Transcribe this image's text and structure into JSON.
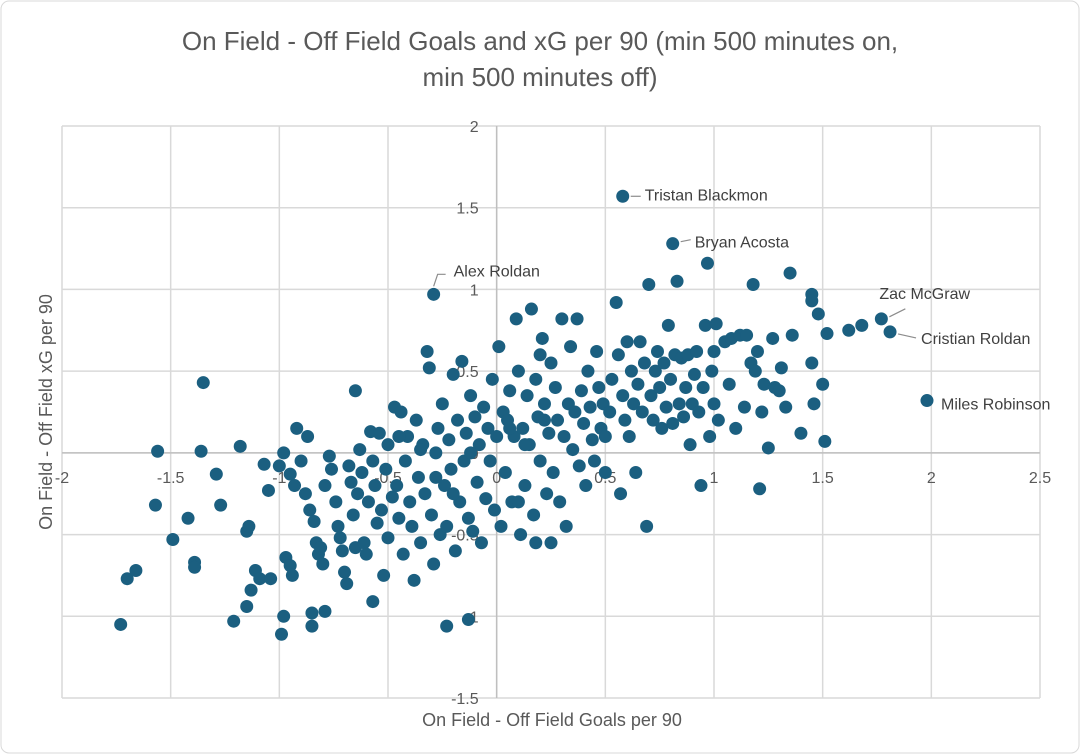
{
  "chart_data": {
    "type": "scatter",
    "title": [
      "On Field - Off Field Goals and xG per 90 (min 500 minutes on,",
      "min 500 minutes off)"
    ],
    "xlabel": "On Field - Off Field Goals per 90",
    "ylabel": "On Field - Off Field xG per 90",
    "xlim": [
      -2,
      2.5
    ],
    "ylim": [
      -1.5,
      2
    ],
    "xticks": [
      -2,
      -1.5,
      -1,
      -0.5,
      0,
      0.5,
      1,
      1.5,
      2,
      2.5
    ],
    "yticks": [
      -1.5,
      -1,
      -0.5,
      0,
      0.5,
      1,
      1.5,
      2
    ],
    "grid": true,
    "marker_color": "#1b5f80",
    "labeled_points": [
      {
        "name": "Tristan Blackmon",
        "x": 0.58,
        "y": 1.57
      },
      {
        "name": "Bryan Acosta",
        "x": 0.81,
        "y": 1.28
      },
      {
        "name": "Alex Roldan",
        "x": -0.29,
        "y": 0.97
      },
      {
        "name": "Zac McGraw",
        "x": 1.77,
        "y": 0.82
      },
      {
        "name": "Cristian Roldan",
        "x": 1.81,
        "y": 0.74
      },
      {
        "name": "Miles Robinson",
        "x": 1.98,
        "y": 0.32
      }
    ],
    "points": [
      [
        -1.73,
        -1.05
      ],
      [
        -1.7,
        -0.77
      ],
      [
        -1.66,
        -0.72
      ],
      [
        -1.57,
        -0.32
      ],
      [
        -1.56,
        0.01
      ],
      [
        -1.49,
        -0.53
      ],
      [
        -1.42,
        -0.4
      ],
      [
        -1.39,
        -0.67
      ],
      [
        -1.39,
        -0.7
      ],
      [
        -1.35,
        0.43
      ],
      [
        -1.36,
        0.01
      ],
      [
        -1.29,
        -0.13
      ],
      [
        -1.27,
        -0.32
      ],
      [
        -1.21,
        -1.03
      ],
      [
        -1.18,
        0.04
      ],
      [
        -1.15,
        -0.48
      ],
      [
        -1.14,
        -0.45
      ],
      [
        -1.15,
        -0.94
      ],
      [
        -1.13,
        -0.84
      ],
      [
        -1.11,
        -0.72
      ],
      [
        -1.09,
        -0.77
      ],
      [
        -1.07,
        -0.07
      ],
      [
        -1.05,
        -0.23
      ],
      [
        -1.04,
        -0.77
      ],
      [
        -0.99,
        -1.11
      ],
      [
        -0.98,
        -1.0
      ],
      [
        -0.97,
        -0.64
      ],
      [
        -0.95,
        -0.69
      ],
      [
        -0.94,
        -0.75
      ],
      [
        -0.92,
        0.15
      ],
      [
        -0.87,
        0.1
      ],
      [
        -0.85,
        -0.98
      ],
      [
        -0.85,
        -1.06
      ],
      [
        -0.79,
        -0.97
      ],
      [
        -0.65,
        0.38
      ],
      [
        -0.57,
        -0.91
      ],
      [
        -0.23,
        -1.06
      ],
      [
        -0.13,
        -1.02
      ],
      [
        -1.0,
        -0.08
      ],
      [
        -0.98,
        0.0
      ],
      [
        -0.95,
        -0.13
      ],
      [
        -0.93,
        -0.2
      ],
      [
        -0.9,
        -0.05
      ],
      [
        -0.88,
        -0.25
      ],
      [
        -0.86,
        -0.35
      ],
      [
        -0.84,
        -0.42
      ],
      [
        -0.83,
        -0.55
      ],
      [
        -0.82,
        -0.62
      ],
      [
        -0.81,
        -0.58
      ],
      [
        -0.8,
        -0.68
      ],
      [
        -0.79,
        -0.2
      ],
      [
        -0.77,
        -0.02
      ],
      [
        -0.76,
        -0.1
      ],
      [
        -0.74,
        -0.3
      ],
      [
        -0.73,
        -0.45
      ],
      [
        -0.72,
        -0.52
      ],
      [
        -0.71,
        -0.6
      ],
      [
        -0.7,
        -0.73
      ],
      [
        -0.69,
        -0.8
      ],
      [
        -0.68,
        -0.08
      ],
      [
        -0.67,
        -0.18
      ],
      [
        -0.66,
        -0.38
      ],
      [
        -0.65,
        -0.58
      ],
      [
        -0.64,
        -0.25
      ],
      [
        -0.63,
        0.02
      ],
      [
        -0.62,
        -0.12
      ],
      [
        -0.61,
        -0.55
      ],
      [
        -0.6,
        -0.62
      ],
      [
        -0.59,
        -0.3
      ],
      [
        -0.58,
        0.13
      ],
      [
        -0.57,
        -0.05
      ],
      [
        -0.56,
        -0.2
      ],
      [
        -0.55,
        -0.43
      ],
      [
        -0.54,
        0.12
      ],
      [
        -0.53,
        -0.35
      ],
      [
        -0.52,
        -0.75
      ],
      [
        -0.51,
        -0.1
      ],
      [
        -0.5,
        0.05
      ],
      [
        -0.5,
        -0.52
      ],
      [
        -0.48,
        -0.27
      ],
      [
        -0.47,
        0.28
      ],
      [
        -0.46,
        -0.2
      ],
      [
        -0.45,
        -0.4
      ],
      [
        -0.44,
        0.25
      ],
      [
        -0.43,
        -0.62
      ],
      [
        -0.42,
        -0.05
      ],
      [
        -0.41,
        0.1
      ],
      [
        -0.4,
        -0.3
      ],
      [
        -0.39,
        -0.45
      ],
      [
        -0.38,
        -0.78
      ],
      [
        -0.37,
        0.2
      ],
      [
        -0.36,
        -0.15
      ],
      [
        -0.35,
        -0.55
      ],
      [
        -0.34,
        0.05
      ],
      [
        -0.33,
        -0.25
      ],
      [
        -0.32,
        0.62
      ],
      [
        -0.31,
        0.52
      ],
      [
        -0.3,
        -0.38
      ],
      [
        -0.29,
        -0.68
      ],
      [
        -0.28,
        0.0
      ],
      [
        -0.27,
        0.15
      ],
      [
        -0.26,
        -0.5
      ],
      [
        -0.25,
        0.3
      ],
      [
        -0.24,
        -0.2
      ],
      [
        -0.23,
        -0.45
      ],
      [
        -0.22,
        0.08
      ],
      [
        -0.21,
        -0.1
      ],
      [
        -0.2,
        0.48
      ],
      [
        -0.19,
        -0.6
      ],
      [
        -0.18,
        0.2
      ],
      [
        -0.17,
        -0.3
      ],
      [
        -0.16,
        0.56
      ],
      [
        -0.15,
        -0.05
      ],
      [
        -0.14,
        0.12
      ],
      [
        -0.13,
        -0.4
      ],
      [
        -0.12,
        0.35
      ],
      [
        -0.11,
        -0.48
      ],
      [
        -0.1,
        0.22
      ],
      [
        -0.09,
        -0.18
      ],
      [
        -0.08,
        0.05
      ],
      [
        -0.07,
        -0.55
      ],
      [
        -0.06,
        0.28
      ],
      [
        -0.05,
        -0.28
      ],
      [
        -0.04,
        0.15
      ],
      [
        -0.03,
        -0.05
      ],
      [
        -0.02,
        0.45
      ],
      [
        -0.01,
        -0.35
      ],
      [
        0.0,
        0.1
      ],
      [
        -0.35,
        0.02
      ],
      [
        -0.28,
        -0.15
      ],
      [
        -0.12,
        0.0
      ],
      [
        -0.45,
        0.1
      ],
      [
        -0.2,
        -0.25
      ],
      [
        0.01,
        0.65
      ],
      [
        0.02,
        -0.45
      ],
      [
        0.03,
        0.25
      ],
      [
        0.04,
        -0.12
      ],
      [
        0.05,
        0.2
      ],
      [
        0.06,
        0.38
      ],
      [
        0.07,
        -0.3
      ],
      [
        0.08,
        0.1
      ],
      [
        0.09,
        0.82
      ],
      [
        0.1,
        0.5
      ],
      [
        0.11,
        -0.5
      ],
      [
        0.12,
        0.15
      ],
      [
        0.13,
        -0.2
      ],
      [
        0.14,
        0.35
      ],
      [
        0.15,
        0.05
      ],
      [
        0.16,
        0.88
      ],
      [
        0.17,
        -0.38
      ],
      [
        0.18,
        0.45
      ],
      [
        0.19,
        0.22
      ],
      [
        0.2,
        -0.05
      ],
      [
        0.21,
        0.7
      ],
      [
        0.22,
        0.3
      ],
      [
        0.23,
        -0.25
      ],
      [
        0.24,
        0.12
      ],
      [
        0.25,
        0.55
      ],
      [
        0.26,
        -0.12
      ],
      [
        0.27,
        0.4
      ],
      [
        0.28,
        0.2
      ],
      [
        0.29,
        -0.3
      ],
      [
        0.3,
        0.82
      ],
      [
        0.31,
        0.1
      ],
      [
        0.32,
        -0.45
      ],
      [
        0.33,
        0.3
      ],
      [
        0.34,
        0.65
      ],
      [
        0.35,
        0.02
      ],
      [
        0.36,
        0.25
      ],
      [
        0.37,
        0.82
      ],
      [
        0.38,
        -0.08
      ],
      [
        0.39,
        0.38
      ],
      [
        0.4,
        0.18
      ],
      [
        0.41,
        -0.2
      ],
      [
        0.42,
        0.5
      ],
      [
        0.43,
        0.28
      ],
      [
        0.44,
        0.08
      ],
      [
        0.45,
        -0.05
      ],
      [
        0.46,
        0.62
      ],
      [
        0.47,
        0.4
      ],
      [
        0.48,
        0.15
      ],
      [
        0.49,
        0.3
      ],
      [
        0.5,
        0.1
      ],
      [
        0.13,
        0.05
      ],
      [
        0.18,
        -0.55
      ],
      [
        0.25,
        -0.55
      ],
      [
        0.06,
        0.15
      ],
      [
        0.22,
        0.2
      ],
      [
        0.1,
        -0.3
      ],
      [
        0.2,
        0.6
      ],
      [
        0.5,
        -0.12
      ],
      [
        0.52,
        0.25
      ],
      [
        0.53,
        0.45
      ],
      [
        0.55,
        0.92
      ],
      [
        0.56,
        0.6
      ],
      [
        0.57,
        -0.25
      ],
      [
        0.58,
        0.35
      ],
      [
        0.59,
        0.2
      ],
      [
        0.6,
        0.68
      ],
      [
        0.61,
        0.1
      ],
      [
        0.62,
        0.5
      ],
      [
        0.63,
        0.3
      ],
      [
        0.64,
        -0.12
      ],
      [
        0.65,
        0.42
      ],
      [
        0.66,
        0.68
      ],
      [
        0.67,
        0.25
      ],
      [
        0.68,
        0.55
      ],
      [
        0.69,
        -0.45
      ],
      [
        0.7,
        1.03
      ],
      [
        0.71,
        0.35
      ],
      [
        0.72,
        0.2
      ],
      [
        0.73,
        0.5
      ],
      [
        0.74,
        0.62
      ],
      [
        0.75,
        0.4
      ],
      [
        0.76,
        0.15
      ],
      [
        0.77,
        0.55
      ],
      [
        0.78,
        0.28
      ],
      [
        0.79,
        0.78
      ],
      [
        0.8,
        0.45
      ],
      [
        0.81,
        0.18
      ],
      [
        0.82,
        0.6
      ],
      [
        0.83,
        1.05
      ],
      [
        0.84,
        0.3
      ],
      [
        0.85,
        0.58
      ],
      [
        0.86,
        0.22
      ],
      [
        0.87,
        0.4
      ],
      [
        0.88,
        0.6
      ],
      [
        0.89,
        0.05
      ],
      [
        0.9,
        0.3
      ],
      [
        0.91,
        0.48
      ],
      [
        0.92,
        0.62
      ],
      [
        0.93,
        0.25
      ],
      [
        0.94,
        -0.2
      ],
      [
        0.95,
        0.4
      ],
      [
        0.96,
        0.78
      ],
      [
        0.97,
        1.16
      ],
      [
        0.98,
        0.1
      ],
      [
        0.99,
        0.5
      ],
      [
        1.0,
        0.62
      ],
      [
        1.0,
        0.3
      ],
      [
        1.01,
        0.79
      ],
      [
        1.02,
        0.2
      ],
      [
        1.05,
        0.68
      ],
      [
        1.07,
        0.42
      ],
      [
        1.08,
        0.7
      ],
      [
        1.1,
        0.15
      ],
      [
        1.12,
        0.72
      ],
      [
        1.14,
        0.28
      ],
      [
        1.15,
        0.72
      ],
      [
        1.17,
        0.55
      ],
      [
        1.18,
        1.03
      ],
      [
        1.19,
        0.5
      ],
      [
        1.2,
        0.62
      ],
      [
        1.21,
        -0.22
      ],
      [
        1.22,
        0.25
      ],
      [
        1.23,
        0.42
      ],
      [
        1.25,
        0.03
      ],
      [
        1.27,
        0.7
      ],
      [
        1.28,
        0.4
      ],
      [
        1.3,
        0.38
      ],
      [
        1.31,
        0.52
      ],
      [
        1.33,
        0.28
      ],
      [
        1.35,
        1.1
      ],
      [
        1.36,
        0.72
      ],
      [
        1.4,
        0.12
      ],
      [
        1.45,
        0.97
      ],
      [
        1.45,
        0.93
      ],
      [
        1.45,
        0.55
      ],
      [
        1.46,
        0.3
      ],
      [
        1.48,
        0.85
      ],
      [
        1.5,
        0.42
      ],
      [
        1.51,
        0.07
      ],
      [
        1.52,
        0.73
      ],
      [
        1.62,
        0.75
      ],
      [
        1.68,
        0.78
      ]
    ]
  }
}
